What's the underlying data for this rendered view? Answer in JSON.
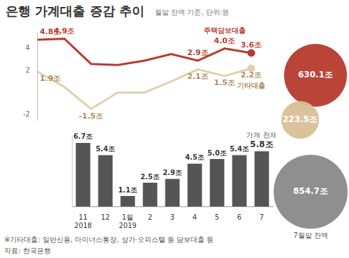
{
  "title": "은행 가계대출 증감 추이",
  "subtitle": "월말 잔액 기준, 단위:원",
  "chart_data": [
    {
      "type": "line",
      "categories": [
        null,
        null,
        null,
        null,
        null,
        null,
        null,
        null,
        null
      ],
      "ylim": [
        -2.5,
        5.5
      ],
      "yticks": [
        -2,
        2,
        4
      ],
      "grid": false,
      "tick_labels": "y",
      "data_labels": true,
      "series": [
        {
          "name": "주택담보대출",
          "color": "#b83a2e",
          "values": [
            4.8,
            4.9,
            2.6,
            2.5,
            2.9,
            3.5,
            2.9,
            4.0,
            3.6
          ],
          "value_labels": [
            "4.8조",
            "4.9조",
            null,
            null,
            null,
            null,
            "2.9조",
            "4.0조",
            "3.6조"
          ]
        },
        {
          "name": "기타대출",
          "color": "#e3cfae",
          "values": [
            1.9,
            0.5,
            -1.5,
            0,
            0,
            1.0,
            2.1,
            1.5,
            2.2
          ],
          "value_labels": [
            "1.9조",
            null,
            "-1.5조",
            null,
            null,
            null,
            "2.1조",
            "1.5조",
            "2.2조"
          ]
        }
      ]
    },
    {
      "type": "bar",
      "title": "가계 전체",
      "categories": [
        "11",
        "12",
        "1월",
        "2",
        "3",
        "4",
        "5",
        "6",
        "7"
      ],
      "year_labels": [
        "2018",
        null,
        "2019",
        null,
        null,
        null,
        null,
        null,
        null
      ],
      "values": [
        6.7,
        5.4,
        1.1,
        2.5,
        2.9,
        4.5,
        5.0,
        5.4,
        5.8
      ],
      "value_labels": [
        "6.7조",
        "5.4조",
        "1.1조",
        "2.5조",
        "2.9조",
        "4.5조",
        "5.0조",
        "5.4조",
        "5.8조"
      ],
      "color": "#555555",
      "ylim": [
        0,
        7.5
      ],
      "grid": false,
      "tick_labels": "x",
      "data_labels": true
    }
  ],
  "balances": {
    "title": "7월말 잔액",
    "items": [
      {
        "value": 630.1,
        "label": "630.1조",
        "color": "#b83a2e"
      },
      {
        "value": 223.5,
        "label": "223.5조",
        "color": "#d9bf96"
      },
      {
        "value": 854.7,
        "label": "854.7조",
        "color": "#8a8a8a"
      }
    ]
  },
  "footnote": "※기타대출: 일반신용, 마이너스통장, 상가·오피스텔 등 담보대출 등",
  "source": "자료: 한국은행"
}
